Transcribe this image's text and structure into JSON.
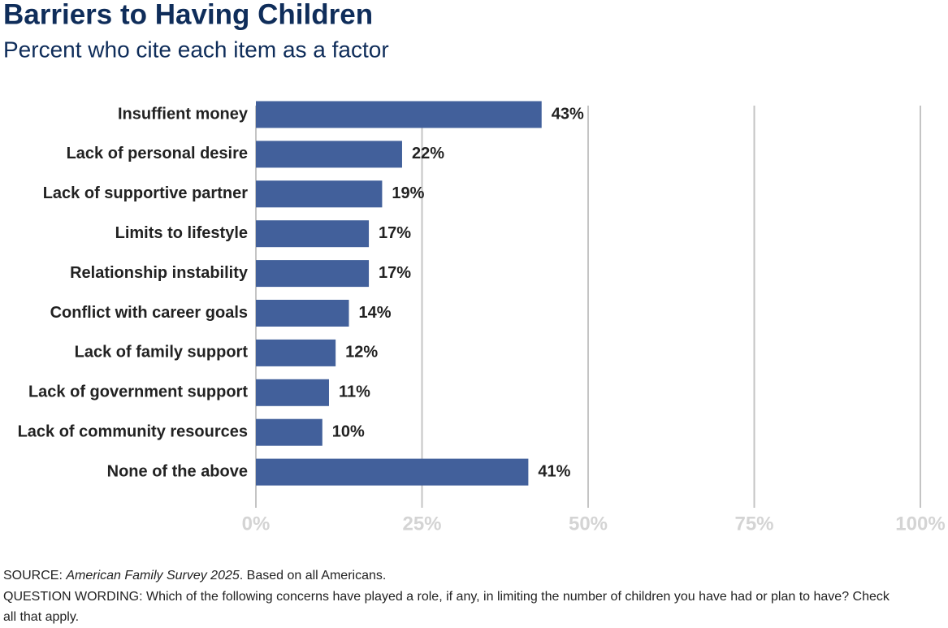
{
  "chart_data": {
    "type": "hbar",
    "title": "Barriers to Having Children",
    "subtitle": "Percent who cite each item as a factor",
    "categories": [
      "Insuffient money",
      "Lack of personal desire",
      "Lack of supportive partner",
      "Limits to lifestyle",
      "Relationship instability",
      "Conflict with career goals",
      "Lack of family support",
      "Lack of government support",
      "Lack of community resources",
      "None of the above"
    ],
    "values": [
      43,
      22,
      19,
      17,
      17,
      14,
      12,
      11,
      10,
      41
    ],
    "value_labels": [
      "43%",
      "22%",
      "19%",
      "17%",
      "17%",
      "14%",
      "12%",
      "11%",
      "10%",
      "41%"
    ],
    "color": "#42609b",
    "xlim": [
      0,
      100
    ],
    "xticks": [
      {
        "value": 0,
        "label": "0%"
      },
      {
        "value": 25,
        "label": "25%"
      },
      {
        "value": 50,
        "label": "50%"
      },
      {
        "value": 75,
        "label": "75%"
      },
      {
        "value": 100,
        "label": "100%"
      }
    ],
    "grid": true,
    "source": [
      "SOURCE:",
      "American Family Survey 2025",
      ". Based on all Americans."
    ],
    "question_wording": "QUESTION WORDING: Which of the following concerns have played a role, if any, in limiting the number of children you have had or plan to have? Check all that apply."
  }
}
